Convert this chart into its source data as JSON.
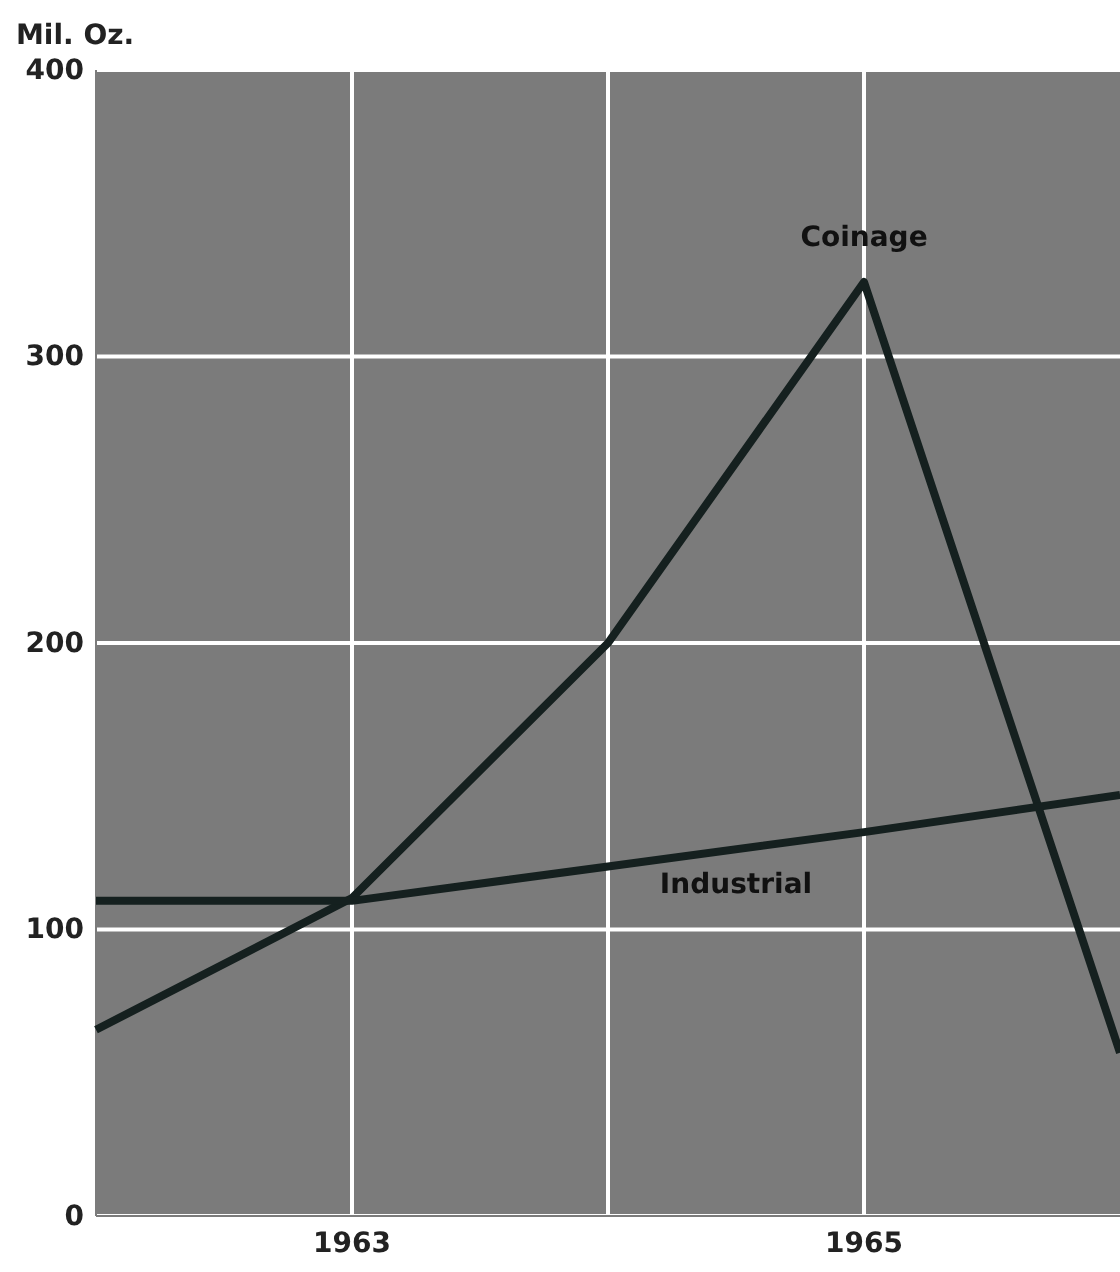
{
  "chart_data": {
    "type": "line",
    "ylabel": "Mil. Oz.",
    "x": [
      1962,
      1963,
      1964,
      1965,
      1966
    ],
    "series": [
      {
        "name": "Coinage",
        "color": "#15201f",
        "values": [
          65,
          111,
          200,
          326,
          57
        ]
      },
      {
        "name": "Industrial",
        "color": "#15201f",
        "values": [
          110,
          110,
          122,
          134,
          147
        ]
      }
    ],
    "xlim": [
      1962,
      1966
    ],
    "xticks": [
      {
        "value": 1963,
        "label": "1963"
      },
      {
        "value": 1964,
        "label": null
      },
      {
        "value": 1965,
        "label": "1965"
      }
    ],
    "ylim": [
      0,
      400
    ],
    "yticks": [
      0,
      100,
      200,
      300,
      400
    ],
    "grid": true,
    "marker": "none",
    "line_style": "solid"
  }
}
